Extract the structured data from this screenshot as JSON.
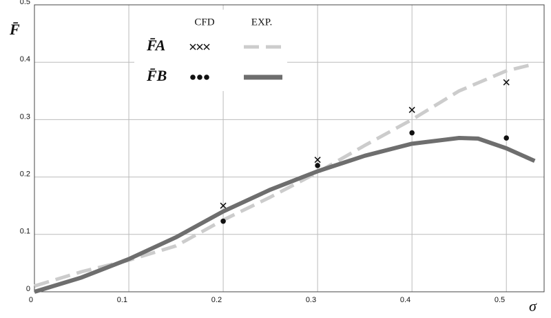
{
  "chart_data": {
    "type": "line",
    "x_label": "σ",
    "y_label": "F̄",
    "xlim": [
      0,
      0.54
    ],
    "ylim": [
      0,
      0.5
    ],
    "xticks": [
      0,
      0.1,
      0.2,
      0.3,
      0.4,
      0.5
    ],
    "yticks": [
      0,
      0.1,
      0.2,
      0.3,
      0.4,
      0.5
    ],
    "grid": true,
    "legend_columns": [
      "CFD",
      "EXP."
    ],
    "series": [
      {
        "name": "F̄A",
        "marker": "x",
        "color": "#cccccc",
        "cfd_color": "#111111",
        "dashed": true,
        "cfd": {
          "x": [
            0.2,
            0.3,
            0.4,
            0.5
          ],
          "values": [
            0.15,
            0.23,
            0.317,
            0.365
          ]
        },
        "exp": {
          "x": [
            0,
            0.05,
            0.1,
            0.15,
            0.2,
            0.25,
            0.3,
            0.35,
            0.4,
            0.45,
            0.5,
            0.53
          ],
          "values": [
            0.01,
            0.035,
            0.055,
            0.08,
            0.125,
            0.165,
            0.208,
            0.255,
            0.3,
            0.35,
            0.385,
            0.397
          ]
        }
      },
      {
        "name": "F̄B",
        "marker": "dot",
        "color": "#6e6e6e",
        "cfd_color": "#111111",
        "dashed": false,
        "cfd": {
          "x": [
            0.2,
            0.3,
            0.4,
            0.5
          ],
          "values": [
            0.123,
            0.22,
            0.277,
            0.268
          ]
        },
        "exp": {
          "x": [
            0,
            0.05,
            0.1,
            0.15,
            0.2,
            0.25,
            0.3,
            0.35,
            0.4,
            0.45,
            0.47,
            0.5,
            0.53
          ],
          "values": [
            0,
            0.025,
            0.057,
            0.095,
            0.14,
            0.178,
            0.21,
            0.237,
            0.258,
            0.268,
            0.267,
            0.25,
            0.228
          ]
        }
      }
    ]
  }
}
